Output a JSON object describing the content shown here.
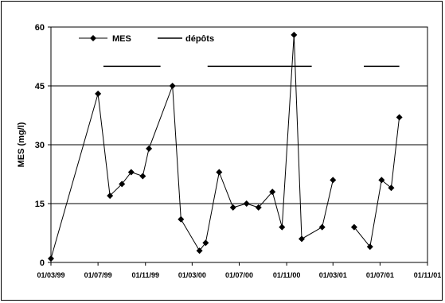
{
  "chart_data": {
    "type": "line",
    "title": "",
    "xlabel": "",
    "ylabel": "MES (mg/l)",
    "ylim": [
      0,
      60
    ],
    "yticks": [
      0,
      15,
      30,
      45,
      60
    ],
    "xlim": [
      "1999-03-01",
      "2001-11-01"
    ],
    "xticks": [
      "01/03/99",
      "01/07/99",
      "01/11/99",
      "01/03/00",
      "01/07/00",
      "01/11/00",
      "01/03/01",
      "01/07/01",
      "01/11/01"
    ],
    "xtick_dates": [
      "1999-03-01",
      "1999-07-01",
      "1999-11-01",
      "2000-03-01",
      "2000-07-01",
      "2000-11-01",
      "2001-03-01",
      "2001-07-01",
      "2001-11-01"
    ],
    "grid": "horizontal",
    "legend_placement": "top-left",
    "series": [
      {
        "name": "MES",
        "style": "line-with-diamond-markers",
        "segments": [
          [
            {
              "x": "1999-03-01",
              "y": 1
            },
            {
              "x": "1999-07-01",
              "y": 43
            },
            {
              "x": "1999-08-01",
              "y": 17
            },
            {
              "x": "1999-09-01",
              "y": 20
            },
            {
              "x": "1999-09-25",
              "y": 23
            },
            {
              "x": "1999-10-25",
              "y": 22
            },
            {
              "x": "1999-11-10",
              "y": 29
            },
            {
              "x": "2000-01-10",
              "y": 45
            },
            {
              "x": "2000-02-01",
              "y": 11
            },
            {
              "x": "2000-03-20",
              "y": 3
            },
            {
              "x": "2000-04-05",
              "y": 5
            },
            {
              "x": "2000-05-10",
              "y": 23
            },
            {
              "x": "2000-06-15",
              "y": 14
            },
            {
              "x": "2000-07-20",
              "y": 15
            },
            {
              "x": "2000-08-20",
              "y": 14
            },
            {
              "x": "2000-09-25",
              "y": 18
            },
            {
              "x": "2000-10-20",
              "y": 9
            },
            {
              "x": "2000-11-20",
              "y": 58
            },
            {
              "x": "2000-12-10",
              "y": 6
            },
            {
              "x": "2001-02-01",
              "y": 9
            },
            {
              "x": "2001-03-01",
              "y": 21
            }
          ],
          [
            {
              "x": "2001-04-25",
              "y": 9
            },
            {
              "x": "2001-06-05",
              "y": 4
            },
            {
              "x": "2001-07-05",
              "y": 21
            },
            {
              "x": "2001-07-30",
              "y": 19
            },
            {
              "x": "2001-08-20",
              "y": 37
            }
          ]
        ]
      },
      {
        "name": "dépôts",
        "style": "line",
        "periods": [
          {
            "start": "1999-07-15",
            "end": "1999-12-10"
          },
          {
            "start": "2000-04-10",
            "end": "2001-01-05"
          },
          {
            "start": "2001-05-20",
            "end": "2001-08-20"
          }
        ],
        "y": 50
      }
    ]
  },
  "legend": [
    {
      "name": "MES"
    },
    {
      "name": "dépôts"
    }
  ]
}
